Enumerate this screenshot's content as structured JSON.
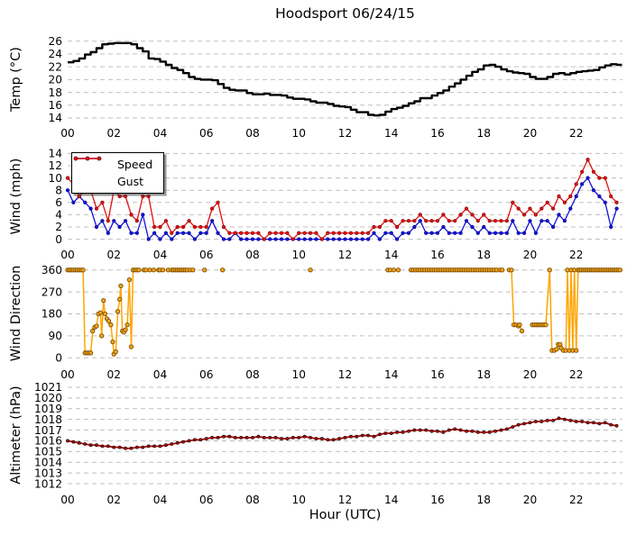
{
  "figure": {
    "title": "Hoodsport 06/24/15",
    "xlabel": "Hour (UTC)",
    "x_tick_labels": [
      "00",
      "02",
      "04",
      "06",
      "08",
      "10",
      "12",
      "14",
      "16",
      "18",
      "20",
      "22"
    ],
    "background": "#ffffff",
    "grid_color": "#bfbfbf"
  },
  "legend": {
    "items": [
      {
        "label": "Speed",
        "color": "#1414d6",
        "marker_edge": "#00008b"
      },
      {
        "label": "Gust",
        "color": "#e01111",
        "marker_edge": "#7a0000"
      }
    ]
  },
  "chart_data": [
    {
      "type": "line",
      "name": "temperature",
      "ylabel": "Temp (°C)",
      "ylim": [
        13.3,
        26.8
      ],
      "yticks": [
        14,
        16,
        18,
        20,
        22,
        24,
        26
      ],
      "color": "#000000",
      "line_style": "step",
      "markers": false,
      "x_start": 0,
      "x_step": 0.25,
      "values": [
        22.7,
        22.9,
        23.3,
        23.9,
        24.3,
        24.9,
        25.5,
        25.6,
        25.7,
        25.7,
        25.7,
        25.5,
        24.9,
        24.4,
        23.3,
        23.2,
        22.8,
        22.3,
        21.8,
        21.5,
        21.0,
        20.4,
        20.1,
        20.0,
        20.0,
        19.9,
        19.3,
        18.7,
        18.4,
        18.3,
        18.3,
        17.9,
        17.7,
        17.7,
        17.8,
        17.6,
        17.6,
        17.5,
        17.2,
        17.0,
        17.0,
        16.9,
        16.6,
        16.4,
        16.4,
        16.2,
        15.9,
        15.8,
        15.7,
        15.3,
        14.9,
        14.9,
        14.5,
        14.4,
        14.5,
        15.0,
        15.4,
        15.6,
        15.9,
        16.3,
        16.6,
        17.1,
        17.1,
        17.5,
        17.9,
        18.3,
        18.9,
        19.4,
        20.0,
        20.6,
        21.2,
        21.6,
        22.2,
        22.3,
        22.0,
        21.6,
        21.3,
        21.1,
        21.0,
        20.9,
        20.4,
        20.1,
        20.1,
        20.4,
        20.9,
        21.0,
        20.8,
        21.0,
        21.2,
        21.3,
        21.4,
        21.5,
        21.9,
        22.2,
        22.4,
        22.3
      ]
    },
    {
      "type": "line",
      "name": "wind",
      "ylabel": "Wind (mph)",
      "ylim": [
        -0.8,
        14.8
      ],
      "yticks": [
        0,
        2,
        4,
        6,
        8,
        10,
        12,
        14
      ],
      "x_start": 0,
      "x_step": 0.25,
      "series": [
        {
          "name": "Speed",
          "color": "#1414d6",
          "marker_edge": "#00008b",
          "values": [
            8,
            6,
            7,
            6,
            5,
            2,
            3,
            1,
            3,
            2,
            3,
            1,
            1,
            4,
            0,
            1,
            0,
            1,
            0,
            1,
            1,
            1,
            0,
            1,
            1,
            3,
            1,
            0,
            0,
            1,
            0,
            0,
            0,
            0,
            0,
            0,
            0,
            0,
            0,
            0,
            0,
            0,
            0,
            0,
            0,
            0,
            0,
            0,
            0,
            0,
            0,
            0,
            0,
            1,
            0,
            1,
            1,
            0,
            1,
            1,
            2,
            3,
            1,
            1,
            1,
            2,
            1,
            1,
            1,
            3,
            2,
            1,
            2,
            1,
            1,
            1,
            1,
            3,
            1,
            1,
            3,
            1,
            3,
            3,
            2,
            4,
            3,
            5,
            7,
            9,
            10,
            8,
            7,
            6,
            2,
            5
          ]
        },
        {
          "name": "Gust",
          "color": "#e01111",
          "marker_edge": "#7a0000",
          "values": [
            10,
            9,
            7,
            8,
            8,
            5,
            6,
            3,
            8,
            7,
            7,
            4,
            3,
            7,
            7,
            2,
            2,
            3,
            1,
            2,
            2,
            3,
            2,
            2,
            2,
            5,
            6,
            2,
            1,
            1,
            1,
            1,
            1,
            1,
            0,
            1,
            1,
            1,
            1,
            0,
            1,
            1,
            1,
            1,
            0,
            1,
            1,
            1,
            1,
            1,
            1,
            1,
            1,
            2,
            2,
            3,
            3,
            2,
            3,
            3,
            3,
            4,
            3,
            3,
            3,
            4,
            3,
            3,
            4,
            5,
            4,
            3,
            4,
            3,
            3,
            3,
            3,
            6,
            5,
            4,
            5,
            4,
            5,
            6,
            5,
            7,
            6,
            7,
            9,
            11,
            13,
            11,
            10,
            10,
            7,
            6
          ]
        }
      ]
    },
    {
      "type": "scatter-line",
      "name": "wind-direction",
      "ylabel": "Wind Direction",
      "ylim": [
        -25,
        385
      ],
      "yticks": [
        0,
        90,
        180,
        270,
        360
      ],
      "color": "#ffa500",
      "marker_fill": "#f5a21b",
      "marker_edge": "#7a4f00",
      "gap_break": 0.17,
      "segments": [
        {
          "h1": 0.0,
          "h2": 0.67,
          "dh": 0.0833,
          "deg": 360
        },
        {
          "h": 0.75,
          "deg": 20
        },
        {
          "h": 0.83,
          "deg": 20
        },
        {
          "h": 0.92,
          "deg": 20
        },
        {
          "h": 1.0,
          "deg": 20
        },
        {
          "h": 1.08,
          "deg": 110
        },
        {
          "h": 1.17,
          "deg": 125
        },
        {
          "h": 1.25,
          "deg": 130
        },
        {
          "h": 1.33,
          "deg": 180
        },
        {
          "h": 1.42,
          "deg": 185
        },
        {
          "h": 1.47,
          "deg": 90
        },
        {
          "h": 1.55,
          "deg": 235
        },
        {
          "h": 1.62,
          "deg": 180
        },
        {
          "h": 1.7,
          "deg": 160
        },
        {
          "h": 1.78,
          "deg": 150
        },
        {
          "h": 1.87,
          "deg": 135
        },
        {
          "h": 1.95,
          "deg": 65
        },
        {
          "h": 2.0,
          "deg": 15
        },
        {
          "h": 2.08,
          "deg": 25
        },
        {
          "h": 2.17,
          "deg": 190
        },
        {
          "h": 2.25,
          "deg": 240
        },
        {
          "h": 2.3,
          "deg": 295
        },
        {
          "h": 2.37,
          "deg": 110
        },
        {
          "h": 2.43,
          "deg": 105
        },
        {
          "h": 2.5,
          "deg": 115
        },
        {
          "h": 2.58,
          "deg": 135
        },
        {
          "h": 2.67,
          "deg": 320
        },
        {
          "h": 2.75,
          "deg": 45
        },
        {
          "h1": 2.83,
          "h2": 3.08,
          "dh": 0.0833,
          "deg": 360
        },
        {
          "h": 3.3,
          "deg": 360
        },
        {
          "h": 3.38,
          "deg": 360
        },
        {
          "h": 3.55,
          "deg": 360
        },
        {
          "h": 3.72,
          "deg": 360
        },
        {
          "h": 3.93,
          "deg": 360
        },
        {
          "h": 4.0,
          "deg": 360
        },
        {
          "h": 4.12,
          "deg": 360
        },
        {
          "h": 4.35,
          "deg": 360
        },
        {
          "h1": 4.5,
          "h2": 5.2,
          "dh": 0.0833,
          "deg": 360
        },
        {
          "h": 5.3,
          "deg": 360
        },
        {
          "h": 5.42,
          "deg": 360
        },
        {
          "h": 5.92,
          "deg": 360
        },
        {
          "h": 6.7,
          "deg": 360
        },
        {
          "h": 10.5,
          "deg": 360
        },
        {
          "h": 13.85,
          "deg": 360
        },
        {
          "h": 13.95,
          "deg": 360
        },
        {
          "h": 14.1,
          "deg": 360
        },
        {
          "h": 14.3,
          "deg": 360
        },
        {
          "h": 14.85,
          "deg": 360
        },
        {
          "h": 14.95,
          "deg": 360
        },
        {
          "h1": 15.05,
          "h2": 18.55,
          "dh": 0.1,
          "deg": 360
        },
        {
          "h": 18.7,
          "deg": 360
        },
        {
          "h": 18.8,
          "deg": 360
        },
        {
          "h": 19.1,
          "deg": 360
        },
        {
          "h": 19.2,
          "deg": 360
        },
        {
          "h": 19.3,
          "deg": 135
        },
        {
          "h": 19.4,
          "deg": 135
        },
        {
          "h": 19.5,
          "deg": 130
        },
        {
          "h": 19.55,
          "deg": 135
        },
        {
          "h": 19.65,
          "deg": 110
        },
        {
          "h1": 20.1,
          "h2": 20.75,
          "dh": 0.0833,
          "deg": 135
        },
        {
          "h": 20.85,
          "deg": 360
        },
        {
          "h": 20.95,
          "deg": 30
        },
        {
          "h": 21.05,
          "deg": 30
        },
        {
          "h": 21.15,
          "deg": 35
        },
        {
          "h": 21.22,
          "deg": 55
        },
        {
          "h": 21.3,
          "deg": 55
        },
        {
          "h": 21.35,
          "deg": 40
        },
        {
          "h": 21.45,
          "deg": 30
        },
        {
          "h": 21.55,
          "deg": 30
        },
        {
          "h": 21.62,
          "deg": 360
        },
        {
          "h": 21.7,
          "deg": 30
        },
        {
          "h": 21.78,
          "deg": 360
        },
        {
          "h": 21.85,
          "deg": 30
        },
        {
          "h": 21.92,
          "deg": 360
        },
        {
          "h": 22.0,
          "deg": 30
        },
        {
          "h": 22.08,
          "deg": 360
        },
        {
          "h1": 22.15,
          "h2": 23.95,
          "dh": 0.0833,
          "deg": 360
        }
      ]
    },
    {
      "type": "line",
      "name": "altimeter",
      "ylabel": "Altimeter (hPa)",
      "ylim": [
        1011.5,
        1021.5
      ],
      "yticks": [
        1012,
        1013,
        1014,
        1015,
        1016,
        1017,
        1018,
        1019,
        1020,
        1021
      ],
      "color": "#b01010",
      "marker_edge": "#000000",
      "markers": true,
      "x_start": 0,
      "x_step": 0.25,
      "values": [
        1016.0,
        1015.9,
        1015.8,
        1015.7,
        1015.6,
        1015.6,
        1015.5,
        1015.5,
        1015.4,
        1015.4,
        1015.3,
        1015.3,
        1015.4,
        1015.4,
        1015.5,
        1015.5,
        1015.5,
        1015.6,
        1015.7,
        1015.8,
        1015.9,
        1016.0,
        1016.1,
        1016.1,
        1016.2,
        1016.3,
        1016.3,
        1016.4,
        1016.4,
        1016.3,
        1016.3,
        1016.3,
        1016.3,
        1016.4,
        1016.3,
        1016.3,
        1016.3,
        1016.2,
        1016.2,
        1016.3,
        1016.3,
        1016.4,
        1016.3,
        1016.2,
        1016.2,
        1016.1,
        1016.1,
        1016.2,
        1016.3,
        1016.4,
        1016.4,
        1016.5,
        1016.5,
        1016.4,
        1016.6,
        1016.7,
        1016.7,
        1016.8,
        1016.8,
        1016.9,
        1017.0,
        1017.0,
        1017.0,
        1016.9,
        1016.9,
        1016.8,
        1017.0,
        1017.1,
        1017.0,
        1016.9,
        1016.9,
        1016.8,
        1016.8,
        1016.8,
        1016.9,
        1017.0,
        1017.1,
        1017.3,
        1017.5,
        1017.6,
        1017.7,
        1017.8,
        1017.8,
        1017.9,
        1017.9,
        1018.1,
        1018.0,
        1017.9,
        1017.8,
        1017.8,
        1017.7,
        1017.7,
        1017.6,
        1017.7,
        1017.5,
        1017.4
      ]
    }
  ]
}
